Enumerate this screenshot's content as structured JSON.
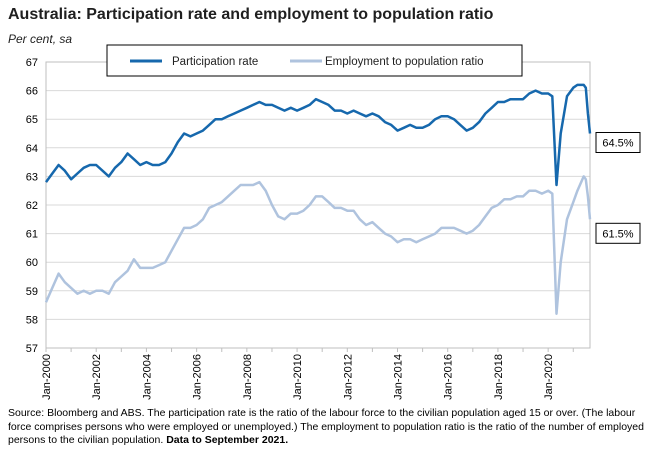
{
  "title": "Australia: Participation rate and employment to population ratio",
  "subtitle": "Per cent, sa",
  "source_text": "Source: Bloomberg and ABS.  The participation rate is the ratio of the labour force to the civilian population aged 15 or over. (The labour force comprises persons who were employed or unemployed.)  The employment to population ratio is the ratio of the number of employed persons to the civilian population.",
  "source_bold": "Data to September 2021.",
  "chart_data": {
    "type": "line",
    "title": "Australia: Participation rate and employment to population ratio",
    "ylabel": "Per cent, sa",
    "xlabel": "",
    "ylim": [
      57,
      67
    ],
    "yticks": [
      "57",
      "58",
      "59",
      "60",
      "61",
      "62",
      "63",
      "64",
      "65",
      "66",
      "67"
    ],
    "xlim": [
      "2000-01",
      "2021-09"
    ],
    "xticks": [
      "Jan-2000",
      "Jan-2002",
      "Jan-2004",
      "Jan-2006",
      "Jan-2008",
      "Jan-2010",
      "Jan-2012",
      "Jan-2014",
      "Jan-2016",
      "Jan-2018",
      "Jan-2020"
    ],
    "grid": "horizontal",
    "legend": "top",
    "series": [
      {
        "name": "Participation rate",
        "color": "#1668ad",
        "end_label": "64.5%",
        "points": [
          [
            "2000-01",
            62.8
          ],
          [
            "2000-04",
            63.1
          ],
          [
            "2000-07",
            63.4
          ],
          [
            "2000-10",
            63.2
          ],
          [
            "2001-01",
            62.9
          ],
          [
            "2001-04",
            63.1
          ],
          [
            "2001-07",
            63.3
          ],
          [
            "2001-10",
            63.4
          ],
          [
            "2002-01",
            63.4
          ],
          [
            "2002-04",
            63.2
          ],
          [
            "2002-07",
            63.0
          ],
          [
            "2002-10",
            63.3
          ],
          [
            "2003-01",
            63.5
          ],
          [
            "2003-04",
            63.8
          ],
          [
            "2003-07",
            63.6
          ],
          [
            "2003-10",
            63.4
          ],
          [
            "2004-01",
            63.5
          ],
          [
            "2004-04",
            63.4
          ],
          [
            "2004-07",
            63.4
          ],
          [
            "2004-10",
            63.5
          ],
          [
            "2005-01",
            63.8
          ],
          [
            "2005-04",
            64.2
          ],
          [
            "2005-07",
            64.5
          ],
          [
            "2005-10",
            64.4
          ],
          [
            "2006-01",
            64.5
          ],
          [
            "2006-04",
            64.6
          ],
          [
            "2006-07",
            64.8
          ],
          [
            "2006-10",
            65.0
          ],
          [
            "2007-01",
            65.0
          ],
          [
            "2007-04",
            65.1
          ],
          [
            "2007-07",
            65.2
          ],
          [
            "2007-10",
            65.3
          ],
          [
            "2008-01",
            65.4
          ],
          [
            "2008-04",
            65.5
          ],
          [
            "2008-07",
            65.6
          ],
          [
            "2008-10",
            65.5
          ],
          [
            "2009-01",
            65.5
          ],
          [
            "2009-04",
            65.4
          ],
          [
            "2009-07",
            65.3
          ],
          [
            "2009-10",
            65.4
          ],
          [
            "2010-01",
            65.3
          ],
          [
            "2010-04",
            65.4
          ],
          [
            "2010-07",
            65.5
          ],
          [
            "2010-10",
            65.7
          ],
          [
            "2011-01",
            65.6
          ],
          [
            "2011-04",
            65.5
          ],
          [
            "2011-07",
            65.3
          ],
          [
            "2011-10",
            65.3
          ],
          [
            "2012-01",
            65.2
          ],
          [
            "2012-04",
            65.3
          ],
          [
            "2012-07",
            65.2
          ],
          [
            "2012-10",
            65.1
          ],
          [
            "2013-01",
            65.2
          ],
          [
            "2013-04",
            65.1
          ],
          [
            "2013-07",
            64.9
          ],
          [
            "2013-10",
            64.8
          ],
          [
            "2014-01",
            64.6
          ],
          [
            "2014-04",
            64.7
          ],
          [
            "2014-07",
            64.8
          ],
          [
            "2014-10",
            64.7
          ],
          [
            "2015-01",
            64.7
          ],
          [
            "2015-04",
            64.8
          ],
          [
            "2015-07",
            65.0
          ],
          [
            "2015-10",
            65.1
          ],
          [
            "2016-01",
            65.1
          ],
          [
            "2016-04",
            65.0
          ],
          [
            "2016-07",
            64.8
          ],
          [
            "2016-10",
            64.6
          ],
          [
            "2017-01",
            64.7
          ],
          [
            "2017-04",
            64.9
          ],
          [
            "2017-07",
            65.2
          ],
          [
            "2017-10",
            65.4
          ],
          [
            "2018-01",
            65.6
          ],
          [
            "2018-04",
            65.6
          ],
          [
            "2018-07",
            65.7
          ],
          [
            "2018-10",
            65.7
          ],
          [
            "2019-01",
            65.7
          ],
          [
            "2019-04",
            65.9
          ],
          [
            "2019-07",
            66.0
          ],
          [
            "2019-10",
            65.9
          ],
          [
            "2020-01",
            65.9
          ],
          [
            "2020-03",
            65.8
          ],
          [
            "2020-05",
            62.7
          ],
          [
            "2020-07",
            64.5
          ],
          [
            "2020-10",
            65.8
          ],
          [
            "2021-01",
            66.1
          ],
          [
            "2021-03",
            66.2
          ],
          [
            "2021-06",
            66.2
          ],
          [
            "2021-07",
            66.1
          ],
          [
            "2021-08",
            65.2
          ],
          [
            "2021-09",
            64.5
          ]
        ]
      },
      {
        "name": "Employment to population ratio",
        "color": "#afc3de",
        "end_label": "61.5%",
        "points": [
          [
            "2000-01",
            58.6
          ],
          [
            "2000-04",
            59.1
          ],
          [
            "2000-07",
            59.6
          ],
          [
            "2000-10",
            59.3
          ],
          [
            "2001-01",
            59.1
          ],
          [
            "2001-04",
            58.9
          ],
          [
            "2001-07",
            59.0
          ],
          [
            "2001-10",
            58.9
          ],
          [
            "2002-01",
            59.0
          ],
          [
            "2002-04",
            59.0
          ],
          [
            "2002-07",
            58.9
          ],
          [
            "2002-10",
            59.3
          ],
          [
            "2003-01",
            59.5
          ],
          [
            "2003-04",
            59.7
          ],
          [
            "2003-07",
            60.1
          ],
          [
            "2003-10",
            59.8
          ],
          [
            "2004-01",
            59.8
          ],
          [
            "2004-04",
            59.8
          ],
          [
            "2004-07",
            59.9
          ],
          [
            "2004-10",
            60.0
          ],
          [
            "2005-01",
            60.4
          ],
          [
            "2005-04",
            60.8
          ],
          [
            "2005-07",
            61.2
          ],
          [
            "2005-10",
            61.2
          ],
          [
            "2006-01",
            61.3
          ],
          [
            "2006-04",
            61.5
          ],
          [
            "2006-07",
            61.9
          ],
          [
            "2006-10",
            62.0
          ],
          [
            "2007-01",
            62.1
          ],
          [
            "2007-04",
            62.3
          ],
          [
            "2007-07",
            62.5
          ],
          [
            "2007-10",
            62.7
          ],
          [
            "2008-01",
            62.7
          ],
          [
            "2008-04",
            62.7
          ],
          [
            "2008-07",
            62.8
          ],
          [
            "2008-10",
            62.5
          ],
          [
            "2009-01",
            62.0
          ],
          [
            "2009-04",
            61.6
          ],
          [
            "2009-07",
            61.5
          ],
          [
            "2009-10",
            61.7
          ],
          [
            "2010-01",
            61.7
          ],
          [
            "2010-04",
            61.8
          ],
          [
            "2010-07",
            62.0
          ],
          [
            "2010-10",
            62.3
          ],
          [
            "2011-01",
            62.3
          ],
          [
            "2011-04",
            62.1
          ],
          [
            "2011-07",
            61.9
          ],
          [
            "2011-10",
            61.9
          ],
          [
            "2012-01",
            61.8
          ],
          [
            "2012-04",
            61.8
          ],
          [
            "2012-07",
            61.5
          ],
          [
            "2012-10",
            61.3
          ],
          [
            "2013-01",
            61.4
          ],
          [
            "2013-04",
            61.2
          ],
          [
            "2013-07",
            61.0
          ],
          [
            "2013-10",
            60.9
          ],
          [
            "2014-01",
            60.7
          ],
          [
            "2014-04",
            60.8
          ],
          [
            "2014-07",
            60.8
          ],
          [
            "2014-10",
            60.7
          ],
          [
            "2015-01",
            60.8
          ],
          [
            "2015-04",
            60.9
          ],
          [
            "2015-07",
            61.0
          ],
          [
            "2015-10",
            61.2
          ],
          [
            "2016-01",
            61.2
          ],
          [
            "2016-04",
            61.2
          ],
          [
            "2016-07",
            61.1
          ],
          [
            "2016-10",
            61.0
          ],
          [
            "2017-01",
            61.1
          ],
          [
            "2017-04",
            61.3
          ],
          [
            "2017-07",
            61.6
          ],
          [
            "2017-10",
            61.9
          ],
          [
            "2018-01",
            62.0
          ],
          [
            "2018-04",
            62.2
          ],
          [
            "2018-07",
            62.2
          ],
          [
            "2018-10",
            62.3
          ],
          [
            "2019-01",
            62.3
          ],
          [
            "2019-04",
            62.5
          ],
          [
            "2019-07",
            62.5
          ],
          [
            "2019-10",
            62.4
          ],
          [
            "2020-01",
            62.5
          ],
          [
            "2020-03",
            62.4
          ],
          [
            "2020-05",
            58.2
          ],
          [
            "2020-07",
            60.0
          ],
          [
            "2020-10",
            61.5
          ],
          [
            "2021-01",
            62.1
          ],
          [
            "2021-03",
            62.5
          ],
          [
            "2021-06",
            63.0
          ],
          [
            "2021-07",
            62.9
          ],
          [
            "2021-08",
            62.3
          ],
          [
            "2021-09",
            61.5
          ]
        ]
      }
    ]
  }
}
